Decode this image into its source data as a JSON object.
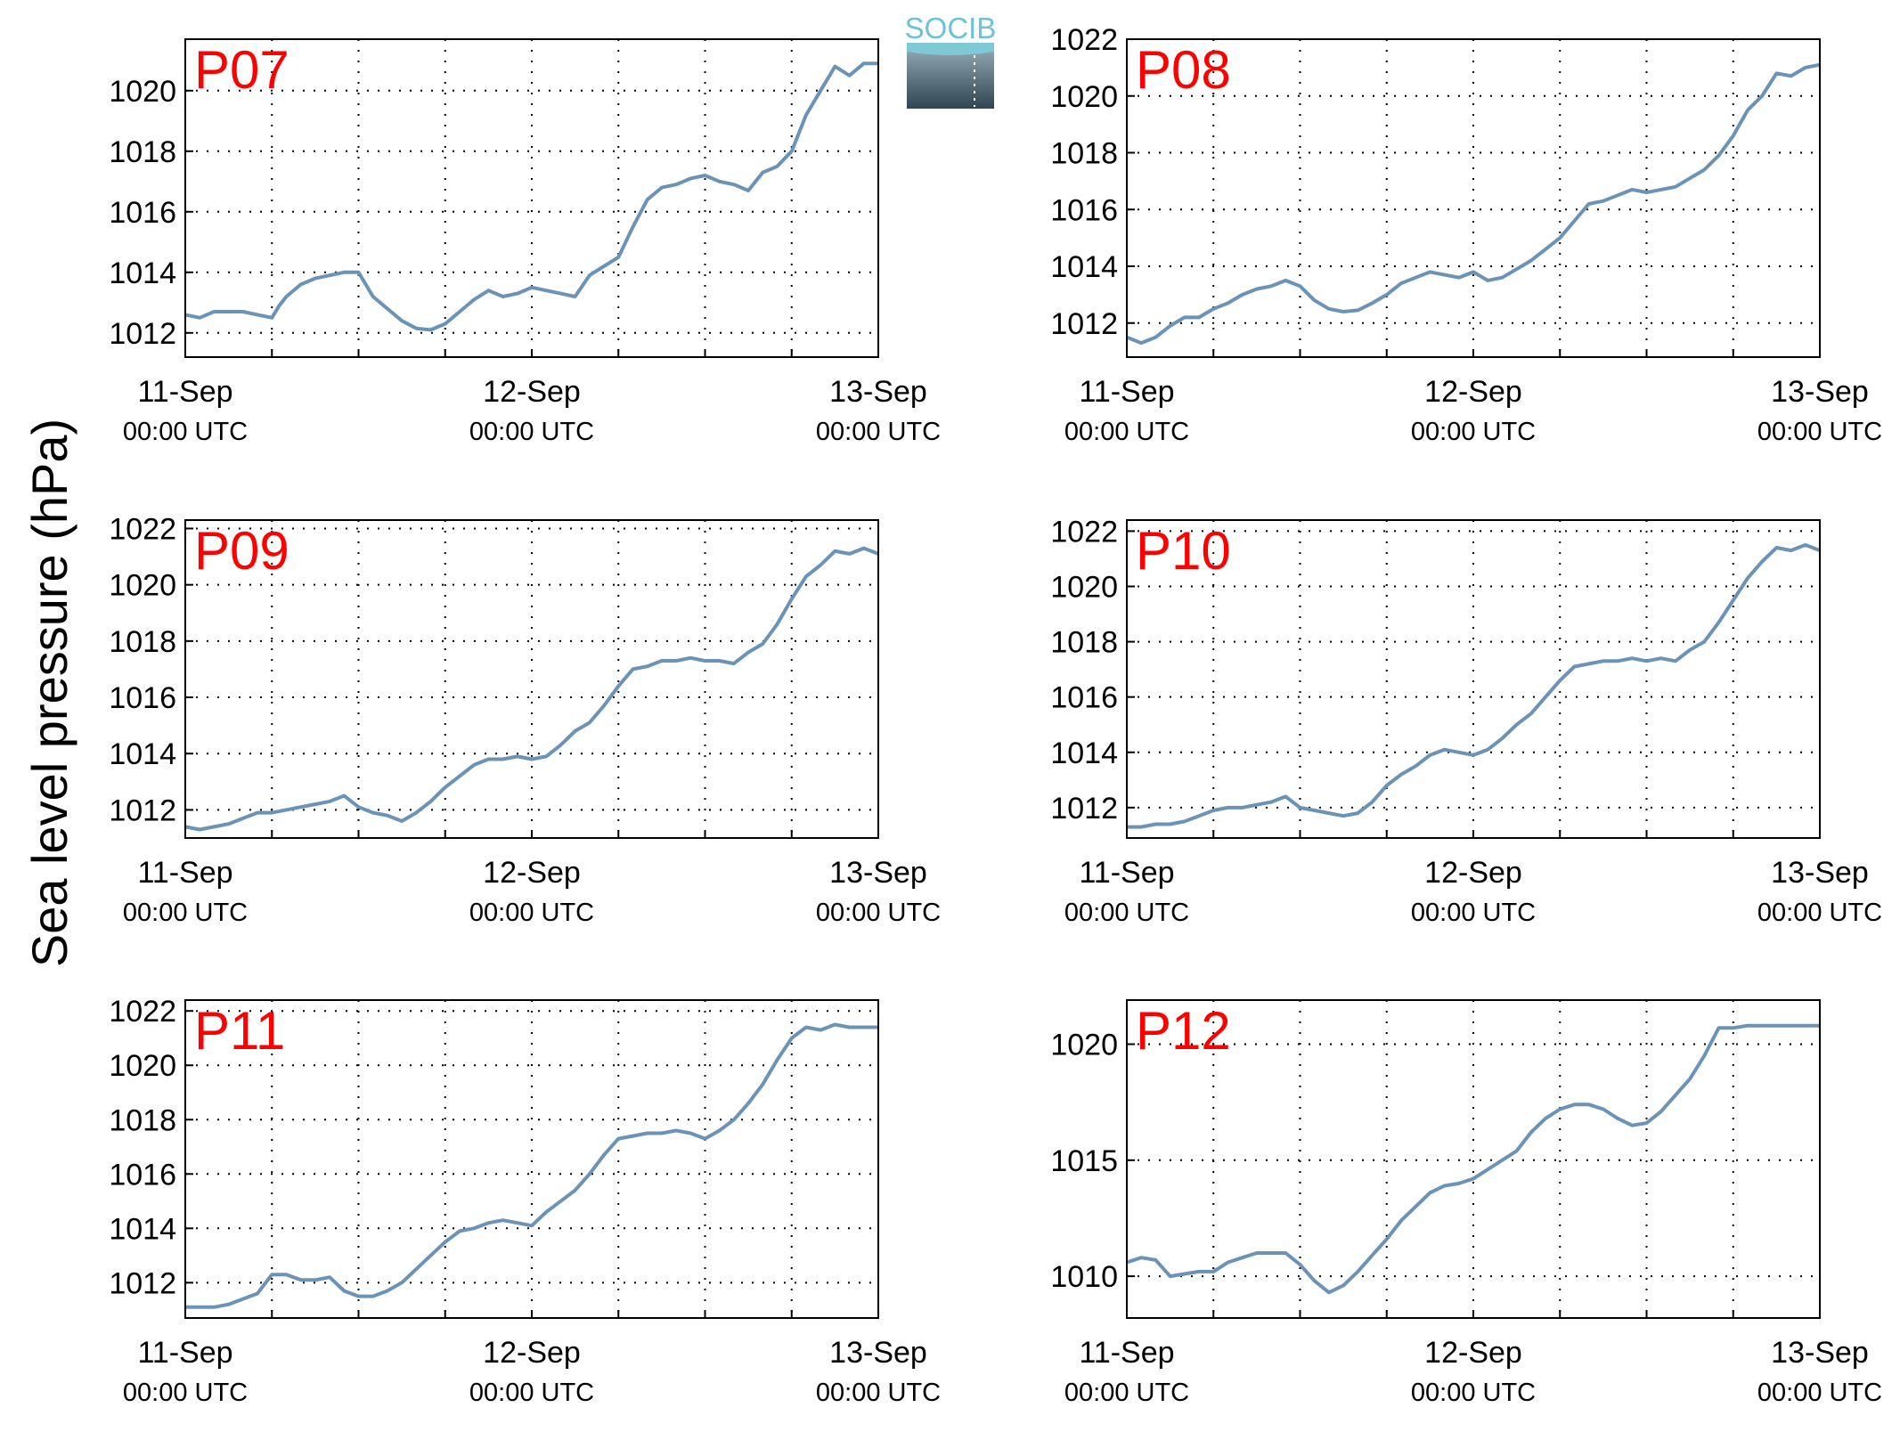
{
  "figure": {
    "ylabel": "Sea level pressure (hPa)",
    "logo_text": "SOCIB",
    "line_color": "#6b93b8",
    "label_color": "#ff0000",
    "grid": true
  },
  "chart_data": [
    {
      "type": "line",
      "title": "P07",
      "xlabel": "",
      "ylabel": "Sea level pressure (hPa)",
      "x_ticks": [
        {
          "main": "11-Sep",
          "sub": "00:00 UTC"
        },
        {
          "main": "12-Sep",
          "sub": "00:00 UTC"
        },
        {
          "main": "13-Sep",
          "sub": "00:00 UTC"
        }
      ],
      "xlim_hours": [
        0,
        48
      ],
      "ylim": [
        1011.2,
        1021.7
      ],
      "yticks": [
        1012,
        1014,
        1016,
        1018,
        1020
      ],
      "series": [
        {
          "hours": [
            0,
            1,
            2,
            3,
            4,
            5,
            6,
            6.5,
            7,
            8,
            9,
            10,
            11,
            12,
            12.5,
            13,
            14,
            15,
            16,
            17,
            18,
            19,
            20,
            21,
            22,
            23,
            24,
            25,
            26,
            27,
            28,
            29,
            30,
            31,
            32,
            33,
            34,
            35,
            36,
            37,
            38,
            39,
            40,
            41,
            42,
            43,
            44,
            45,
            46,
            47,
            48
          ],
          "values": [
            1012.6,
            1012.5,
            1012.7,
            1012.7,
            1012.7,
            1012.6,
            1012.5,
            1012.9,
            1013.2,
            1013.6,
            1013.8,
            1013.9,
            1014.0,
            1014.0,
            1013.6,
            1013.2,
            1012.8,
            1012.4,
            1012.15,
            1012.1,
            1012.3,
            1012.7,
            1013.1,
            1013.4,
            1013.2,
            1013.3,
            1013.5,
            1013.4,
            1013.3,
            1013.2,
            1013.9,
            1014.2,
            1014.5,
            1015.5,
            1016.4,
            1016.8,
            1016.9,
            1017.1,
            1017.2,
            1017.0,
            1016.9,
            1016.7,
            1017.3,
            1017.5,
            1018.0,
            1019.2,
            1020.0,
            1020.8,
            1020.5,
            1020.9,
            1020.9
          ]
        }
      ]
    },
    {
      "type": "line",
      "title": "P08",
      "xlabel": "",
      "ylabel": "Sea level pressure (hPa)",
      "x_ticks": [
        {
          "main": "11-Sep",
          "sub": "00:00 UTC"
        },
        {
          "main": "12-Sep",
          "sub": "00:00 UTC"
        },
        {
          "main": "13-Sep",
          "sub": "00:00 UTC"
        }
      ],
      "xlim_hours": [
        0,
        48
      ],
      "ylim": [
        1010.8,
        1022.0
      ],
      "yticks": [
        1012,
        1014,
        1016,
        1018,
        1020,
        1022
      ],
      "series": [
        {
          "hours": [
            0,
            1,
            2,
            3,
            4,
            5,
            6,
            7,
            8,
            9,
            10,
            11,
            12,
            13,
            14,
            15,
            16,
            17,
            18,
            19,
            20,
            21,
            22,
            23,
            24,
            25,
            26,
            27,
            28,
            29,
            30,
            31,
            32,
            33,
            34,
            35,
            36,
            37,
            38,
            39,
            40,
            41,
            42,
            43,
            44,
            45,
            46,
            47,
            48
          ],
          "values": [
            1011.5,
            1011.3,
            1011.5,
            1011.9,
            1012.2,
            1012.2,
            1012.5,
            1012.7,
            1013.0,
            1013.2,
            1013.3,
            1013.5,
            1013.3,
            1012.8,
            1012.5,
            1012.4,
            1012.45,
            1012.7,
            1013.0,
            1013.4,
            1013.6,
            1013.8,
            1013.7,
            1013.6,
            1013.8,
            1013.5,
            1013.6,
            1013.9,
            1014.2,
            1014.6,
            1015.0,
            1015.6,
            1016.2,
            1016.3,
            1016.5,
            1016.7,
            1016.6,
            1016.7,
            1016.8,
            1017.1,
            1017.4,
            1017.9,
            1018.6,
            1019.5,
            1020.0,
            1020.8,
            1020.7,
            1021.0,
            1021.1
          ]
        }
      ]
    },
    {
      "type": "line",
      "title": "P09",
      "xlabel": "",
      "ylabel": "Sea level pressure (hPa)",
      "x_ticks": [
        {
          "main": "11-Sep",
          "sub": "00:00 UTC"
        },
        {
          "main": "12-Sep",
          "sub": "00:00 UTC"
        },
        {
          "main": "13-Sep",
          "sub": "00:00 UTC"
        }
      ],
      "xlim_hours": [
        0,
        48
      ],
      "ylim": [
        1011.0,
        1022.3
      ],
      "yticks": [
        1012,
        1014,
        1016,
        1018,
        1020,
        1022
      ],
      "series": [
        {
          "hours": [
            0,
            1,
            2,
            3,
            4,
            5,
            6,
            7,
            8,
            9,
            10,
            11,
            12,
            13,
            14,
            15,
            16,
            17,
            18,
            19,
            20,
            21,
            22,
            23,
            24,
            25,
            26,
            27,
            28,
            29,
            30,
            31,
            32,
            33,
            34,
            35,
            36,
            37,
            38,
            39,
            40,
            41,
            42,
            43,
            44,
            45,
            46,
            47,
            48
          ],
          "values": [
            1011.4,
            1011.3,
            1011.4,
            1011.5,
            1011.7,
            1011.9,
            1011.9,
            1012.0,
            1012.1,
            1012.2,
            1012.3,
            1012.5,
            1012.1,
            1011.9,
            1011.8,
            1011.6,
            1011.9,
            1012.3,
            1012.8,
            1013.2,
            1013.6,
            1013.8,
            1013.8,
            1013.9,
            1013.8,
            1013.9,
            1014.3,
            1014.8,
            1015.1,
            1015.7,
            1016.4,
            1017.0,
            1017.1,
            1017.3,
            1017.3,
            1017.4,
            1017.3,
            1017.3,
            1017.2,
            1017.6,
            1017.9,
            1018.6,
            1019.5,
            1020.3,
            1020.7,
            1021.2,
            1021.1,
            1021.3,
            1021.1
          ]
        }
      ]
    },
    {
      "type": "line",
      "title": "P10",
      "xlabel": "",
      "ylabel": "Sea level pressure (hPa)",
      "x_ticks": [
        {
          "main": "11-Sep",
          "sub": "00:00 UTC"
        },
        {
          "main": "12-Sep",
          "sub": "00:00 UTC"
        },
        {
          "main": "13-Sep",
          "sub": "00:00 UTC"
        }
      ],
      "xlim_hours": [
        0,
        48
      ],
      "ylim": [
        1010.9,
        1022.4
      ],
      "yticks": [
        1012,
        1014,
        1016,
        1018,
        1020,
        1022
      ],
      "series": [
        {
          "hours": [
            0,
            1,
            2,
            3,
            4,
            5,
            6,
            7,
            8,
            9,
            10,
            11,
            12,
            13,
            14,
            15,
            16,
            17,
            18,
            19,
            20,
            21,
            22,
            23,
            24,
            25,
            26,
            27,
            28,
            29,
            30,
            31,
            32,
            33,
            34,
            35,
            36,
            37,
            38,
            39,
            40,
            41,
            42,
            43,
            44,
            45,
            46,
            47,
            48
          ],
          "values": [
            1011.3,
            1011.3,
            1011.4,
            1011.4,
            1011.5,
            1011.7,
            1011.9,
            1012.0,
            1012.0,
            1012.1,
            1012.2,
            1012.4,
            1012.0,
            1011.9,
            1011.8,
            1011.7,
            1011.8,
            1012.2,
            1012.8,
            1013.2,
            1013.5,
            1013.9,
            1014.1,
            1014.0,
            1013.9,
            1014.1,
            1014.5,
            1015.0,
            1015.4,
            1016.0,
            1016.6,
            1017.1,
            1017.2,
            1017.3,
            1017.3,
            1017.4,
            1017.3,
            1017.4,
            1017.3,
            1017.7,
            1018.0,
            1018.7,
            1019.5,
            1020.3,
            1020.9,
            1021.4,
            1021.3,
            1021.5,
            1021.3
          ]
        }
      ]
    },
    {
      "type": "line",
      "title": "P11",
      "xlabel": "",
      "ylabel": "Sea level pressure (hPa)",
      "x_ticks": [
        {
          "main": "11-Sep",
          "sub": "00:00 UTC"
        },
        {
          "main": "12-Sep",
          "sub": "00:00 UTC"
        },
        {
          "main": "13-Sep",
          "sub": "00:00 UTC"
        }
      ],
      "xlim_hours": [
        0,
        48
      ],
      "ylim": [
        1010.7,
        1022.4
      ],
      "yticks": [
        1012,
        1014,
        1016,
        1018,
        1020,
        1022
      ],
      "series": [
        {
          "hours": [
            0,
            1,
            2,
            3,
            4,
            5,
            6,
            7,
            8,
            9,
            10,
            11,
            12,
            13,
            14,
            15,
            16,
            17,
            18,
            19,
            20,
            21,
            22,
            23,
            24,
            25,
            26,
            27,
            28,
            29,
            30,
            31,
            32,
            33,
            34,
            35,
            36,
            37,
            38,
            39,
            40,
            41,
            42,
            43,
            44,
            45,
            46,
            47,
            48
          ],
          "values": [
            1011.1,
            1011.1,
            1011.1,
            1011.2,
            1011.4,
            1011.6,
            1012.3,
            1012.3,
            1012.1,
            1012.1,
            1012.2,
            1011.7,
            1011.5,
            1011.5,
            1011.7,
            1012.0,
            1012.5,
            1013.0,
            1013.5,
            1013.9,
            1014.0,
            1014.2,
            1014.3,
            1014.2,
            1014.1,
            1014.6,
            1015.0,
            1015.4,
            1016.0,
            1016.7,
            1017.3,
            1017.4,
            1017.5,
            1017.5,
            1017.6,
            1017.5,
            1017.3,
            1017.6,
            1018.0,
            1018.6,
            1019.3,
            1020.2,
            1021.0,
            1021.4,
            1021.3,
            1021.5,
            1021.4,
            1021.4,
            1021.4
          ]
        }
      ]
    },
    {
      "type": "line",
      "title": "P12",
      "xlabel": "",
      "ylabel": "Sea level pressure (hPa)",
      "x_ticks": [
        {
          "main": "11-Sep",
          "sub": "00:00 UTC"
        },
        {
          "main": "12-Sep",
          "sub": "00:00 UTC"
        },
        {
          "main": "13-Sep",
          "sub": "00:00 UTC"
        }
      ],
      "xlim_hours": [
        0,
        48
      ],
      "ylim": [
        1008.2,
        1021.9
      ],
      "yticks": [
        1010,
        1015,
        1020
      ],
      "series": [
        {
          "hours": [
            0,
            1,
            2,
            3,
            4,
            5,
            6,
            7,
            8,
            9,
            10,
            11,
            12,
            13,
            14,
            15,
            16,
            17,
            18,
            19,
            20,
            21,
            22,
            23,
            24,
            25,
            26,
            27,
            28,
            29,
            30,
            31,
            32,
            33,
            34,
            35,
            36,
            37,
            38,
            39,
            40,
            41,
            42,
            43,
            44,
            45,
            46,
            47,
            48
          ],
          "values": [
            1010.6,
            1010.8,
            1010.7,
            1010.0,
            1010.1,
            1010.2,
            1010.2,
            1010.6,
            1010.8,
            1011.0,
            1011.0,
            1011.0,
            1010.5,
            1009.8,
            1009.3,
            1009.6,
            1010.2,
            1010.9,
            1011.6,
            1012.4,
            1013.0,
            1013.6,
            1013.9,
            1014.0,
            1014.2,
            1014.6,
            1015.0,
            1015.4,
            1016.2,
            1016.8,
            1017.2,
            1017.4,
            1017.4,
            1017.2,
            1016.8,
            1016.5,
            1016.6,
            1017.1,
            1017.8,
            1018.5,
            1019.5,
            1020.7,
            1020.7,
            1020.8,
            1020.8,
            1020.8,
            1020.8,
            1020.8,
            1020.8
          ]
        }
      ]
    }
  ]
}
